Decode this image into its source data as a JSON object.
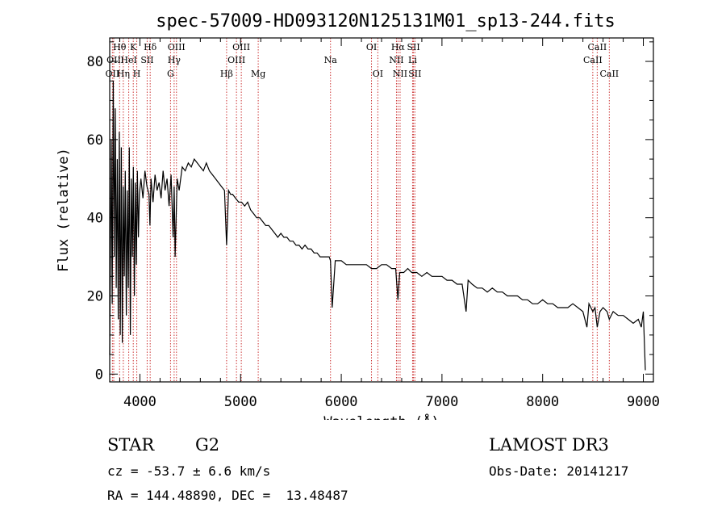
{
  "chart_data": {
    "type": "line",
    "title": "spec-57009-HD093120N125131M01_sp13-244.fits",
    "xlabel": "Wavelength (Å)",
    "ylabel": "Flux (relative)",
    "xlim": [
      3700,
      9100
    ],
    "ylim": [
      -2,
      86
    ],
    "xticks": [
      4000,
      5000,
      6000,
      7000,
      8000,
      9000
    ],
    "yticks": [
      0,
      20,
      40,
      60,
      80
    ],
    "series": [
      {
        "name": "spectrum",
        "x": [
          3700,
          3715,
          3725,
          3735,
          3745,
          3755,
          3765,
          3775,
          3785,
          3795,
          3805,
          3815,
          3825,
          3835,
          3845,
          3855,
          3865,
          3875,
          3885,
          3895,
          3905,
          3915,
          3925,
          3935,
          3945,
          3955,
          3965,
          3975,
          3985,
          3995,
          4010,
          4030,
          4050,
          4070,
          4090,
          4100,
          4110,
          4130,
          4150,
          4170,
          4190,
          4210,
          4230,
          4250,
          4270,
          4290,
          4310,
          4330,
          4340,
          4350,
          4370,
          4390,
          4420,
          4450,
          4480,
          4510,
          4540,
          4570,
          4600,
          4630,
          4660,
          4690,
          4720,
          4750,
          4780,
          4810,
          4840,
          4861,
          4880,
          4900,
          4920,
          4950,
          4980,
          5010,
          5040,
          5070,
          5100,
          5130,
          5160,
          5190,
          5220,
          5250,
          5280,
          5310,
          5340,
          5370,
          5400,
          5430,
          5460,
          5490,
          5520,
          5550,
          5580,
          5610,
          5640,
          5670,
          5700,
          5730,
          5760,
          5790,
          5820,
          5850,
          5880,
          5893,
          5910,
          5940,
          5970,
          6000,
          6050,
          6100,
          6150,
          6200,
          6250,
          6300,
          6350,
          6400,
          6450,
          6500,
          6540,
          6563,
          6580,
          6620,
          6660,
          6700,
          6750,
          6800,
          6850,
          6900,
          6950,
          7000,
          7050,
          7100,
          7150,
          7200,
          7240,
          7260,
          7300,
          7350,
          7400,
          7450,
          7500,
          7550,
          7600,
          7650,
          7700,
          7750,
          7800,
          7850,
          7900,
          7950,
          8000,
          8050,
          8100,
          8150,
          8200,
          8250,
          8300,
          8350,
          8400,
          8440,
          8460,
          8498,
          8520,
          8542,
          8570,
          8600,
          8640,
          8662,
          8700,
          8750,
          8800,
          8850,
          8900,
          8950,
          8980,
          9000,
          9020
        ],
        "y": [
          5,
          60,
          18,
          75,
          30,
          68,
          22,
          55,
          14,
          62,
          10,
          58,
          8,
          48,
          25,
          52,
          15,
          47,
          22,
          58,
          10,
          50,
          30,
          53,
          20,
          49,
          28,
          52,
          35,
          46,
          50,
          45,
          52,
          48,
          46,
          38,
          50,
          44,
          51,
          47,
          49,
          45,
          52,
          47,
          50,
          43,
          51,
          35,
          48,
          30,
          50,
          47,
          53,
          52,
          54,
          53,
          55,
          54,
          53,
          52,
          54,
          52,
          51,
          50,
          49,
          48,
          47,
          33,
          47,
          46,
          46,
          45,
          44,
          44,
          43,
          44,
          42,
          41,
          40,
          40,
          39,
          38,
          38,
          37,
          36,
          35,
          36,
          35,
          35,
          34,
          34,
          33,
          33,
          32,
          33,
          32,
          32,
          31,
          31,
          30,
          30,
          30,
          30,
          29,
          17,
          29,
          29,
          29,
          28,
          28,
          28,
          28,
          28,
          27,
          27,
          28,
          28,
          27,
          27,
          19,
          26,
          26,
          27,
          26,
          26,
          25,
          26,
          25,
          25,
          25,
          24,
          24,
          23,
          23,
          16,
          24,
          23,
          22,
          22,
          21,
          22,
          21,
          21,
          20,
          20,
          20,
          19,
          19,
          18,
          18,
          19,
          18,
          18,
          17,
          17,
          17,
          18,
          17,
          16,
          12,
          18,
          16,
          17,
          12,
          16,
          17,
          16,
          14,
          16,
          15,
          15,
          14,
          13,
          14,
          12,
          16,
          1
        ]
      }
    ],
    "spectral_lines": [
      {
        "name": "OII",
        "wave": 3727,
        "row": 2
      },
      {
        "name": "Hθ",
        "wave": 3798,
        "row": 0
      },
      {
        "name": "OII",
        "wave": 3740,
        "row": 1
      },
      {
        "name": "Hη",
        "wave": 3835,
        "row": 2
      },
      {
        "name": "HeI",
        "wave": 3889,
        "row": 1
      },
      {
        "name": "K",
        "wave": 3934,
        "row": 0
      },
      {
        "name": "H",
        "wave": 3969,
        "row": 2
      },
      {
        "name": "SII",
        "wave": 4072,
        "row": 1
      },
      {
        "name": "Hδ",
        "wave": 4102,
        "row": 0
      },
      {
        "name": "OIII",
        "wave": 4363,
        "row": 0
      },
      {
        "name": "Hγ",
        "wave": 4340,
        "row": 1
      },
      {
        "name": "G",
        "wave": 4304,
        "row": 2
      },
      {
        "name": "Hβ",
        "wave": 4861,
        "row": 2
      },
      {
        "name": "OIII",
        "wave": 4959,
        "row": 1
      },
      {
        "name": "OIII",
        "wave": 5007,
        "row": 0
      },
      {
        "name": "Mg",
        "wave": 5175,
        "row": 2
      },
      {
        "name": "Na",
        "wave": 5893,
        "row": 1
      },
      {
        "name": "OI",
        "wave": 6300,
        "row": 0
      },
      {
        "name": "OI",
        "wave": 6363,
        "row": 2
      },
      {
        "name": "NII",
        "wave": 6548,
        "row": 1
      },
      {
        "name": "Hα",
        "wave": 6563,
        "row": 0
      },
      {
        "name": "NII",
        "wave": 6584,
        "row": 2
      },
      {
        "name": "SII",
        "wave": 6717,
        "row": 0
      },
      {
        "name": "SII",
        "wave": 6731,
        "row": 2
      },
      {
        "name": "Li",
        "wave": 6708,
        "row": 1
      },
      {
        "name": "CaII",
        "wave": 8542,
        "row": 0
      },
      {
        "name": "CaII",
        "wave": 8498,
        "row": 1
      },
      {
        "name": "CaII",
        "wave": 8662,
        "row": 2
      }
    ]
  },
  "info": {
    "class": "STAR",
    "subclass": "G2",
    "survey": "LAMOST DR3",
    "cz": "cz = -53.7 ± 6.6 km/s",
    "obs_date": "Obs-Date: 20141217",
    "coords": "RA = 144.48890, DEC =  13.48487"
  },
  "colors": {
    "line_marker": "#cc3333",
    "spectrum": "#000000"
  }
}
